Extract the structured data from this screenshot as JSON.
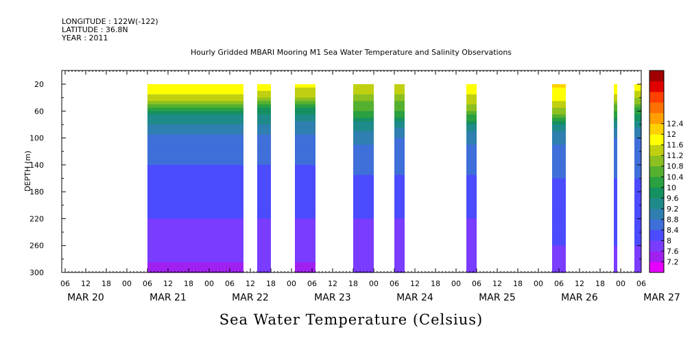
{
  "header": {
    "longitude": "LONGITUDE : 122W(-122)",
    "latitude": "LATITUDE : 36.8N",
    "year": "YEAR : 2011",
    "title": "Hourly Gridded MBARI Mooring M1 Sea Water Temperature and Salinity Observations"
  },
  "chart_data": {
    "type": "heatmap",
    "title": "Hourly Gridded MBARI Mooring M1 Sea Water Temperature and Salinity Observations",
    "colorbar_title": "Sea Water Temperature (Celsius)",
    "ylabel": "DEPTH (m)",
    "y_reversed": true,
    "ylim": [
      300,
      20
    ],
    "y_ticks": [
      20,
      60,
      100,
      140,
      180,
      220,
      260,
      300
    ],
    "x_start": "MAR 20 06",
    "x_end": "MAR 27 06",
    "hour_ticks": [
      "06",
      "12",
      "18",
      "00",
      "06",
      "12",
      "18",
      "00",
      "06",
      "12",
      "18",
      "00",
      "06",
      "12",
      "18",
      "00",
      "06",
      "12",
      "18",
      "00",
      "06",
      "12",
      "18",
      "00",
      "06",
      "12",
      "18",
      "00",
      "06"
    ],
    "day_labels": [
      "MAR 20",
      "MAR 21",
      "MAR 22",
      "MAR 23",
      "MAR 24",
      "MAR 25",
      "MAR 26",
      "MAR 27"
    ],
    "colorbar_levels": [
      7.2,
      7.6,
      8,
      8.4,
      8.8,
      9.2,
      9.6,
      10,
      10.4,
      10.8,
      11.2,
      11.6,
      12,
      12.4
    ],
    "colorbar_label_levels": [
      "7.2",
      "7.6",
      "8",
      "8.4",
      "8.8",
      "9.2",
      "9.6",
      "10",
      "10.4",
      "10.8",
      "11.2",
      "11.6",
      "12",
      "12.4"
    ],
    "colors": [
      "#e600ff",
      "#a020f0",
      "#7a3cff",
      "#4b4bff",
      "#3f6fd9",
      "#2f7fb0",
      "#1f8a8a",
      "#159060",
      "#2aa040",
      "#55b030",
      "#8cc020",
      "#c0d010",
      "#ffff00",
      "#ffd000",
      "#ffa000",
      "#ff7000",
      "#ff4000",
      "#e00000",
      "#a00000"
    ],
    "data_segments": [
      {
        "start": "MAR 21 06",
        "end": "MAR 22 10",
        "profile": [
          12.0,
          11.4,
          9.8,
          9.2,
          8.7,
          8.4,
          8.2,
          8.0,
          7.8,
          7.5
        ]
      },
      {
        "start": "MAR 22 14",
        "end": "MAR 22 18",
        "profile": [
          11.9,
          11.2,
          9.8,
          9.2,
          8.7,
          8.4,
          8.2,
          8.0,
          7.8,
          7.6
        ]
      },
      {
        "start": "MAR 23 01",
        "end": "MAR 23 07",
        "profile": [
          11.8,
          11.2,
          9.7,
          9.1,
          8.7,
          8.4,
          8.2,
          8.0,
          7.8,
          7.5
        ]
      },
      {
        "start": "MAR 23 18",
        "end": "MAR 24 00",
        "profile": [
          11.6,
          11.0,
          10.4,
          9.4,
          8.9,
          8.5,
          8.2,
          8.0,
          7.9,
          7.8
        ]
      },
      {
        "start": "MAR 24 06",
        "end": "MAR 24 09",
        "profile": [
          11.6,
          11.0,
          10.4,
          9.4,
          8.8,
          8.5,
          8.2,
          8.0,
          7.9,
          7.8
        ]
      },
      {
        "start": "MAR 25 03",
        "end": "MAR 25 06",
        "profile": [
          12.0,
          11.5,
          10.8,
          9.6,
          8.9,
          8.5,
          8.2,
          8.0,
          7.9,
          7.8
        ]
      },
      {
        "start": "MAR 26 04",
        "end": "MAR 26 08",
        "profile": [
          12.1,
          11.8,
          11.0,
          9.6,
          8.9,
          8.5,
          8.3,
          8.1,
          8.0,
          7.9
        ]
      },
      {
        "start": "MAR 26 22",
        "end": "MAR 26 23",
        "profile": [
          12.0,
          11.4,
          10.4,
          9.4,
          8.8,
          8.5,
          8.3,
          8.1,
          8.0,
          7.9
        ]
      },
      {
        "start": "MAR 27 04",
        "end": "MAR 27 06",
        "profile": [
          12.0,
          11.3,
          10.2,
          9.3,
          8.8,
          8.5,
          8.3,
          8.1,
          8.0,
          7.9
        ]
      }
    ],
    "profile_depths": [
      20,
      40,
      60,
      80,
      100,
      140,
      180,
      220,
      260,
      300
    ]
  }
}
